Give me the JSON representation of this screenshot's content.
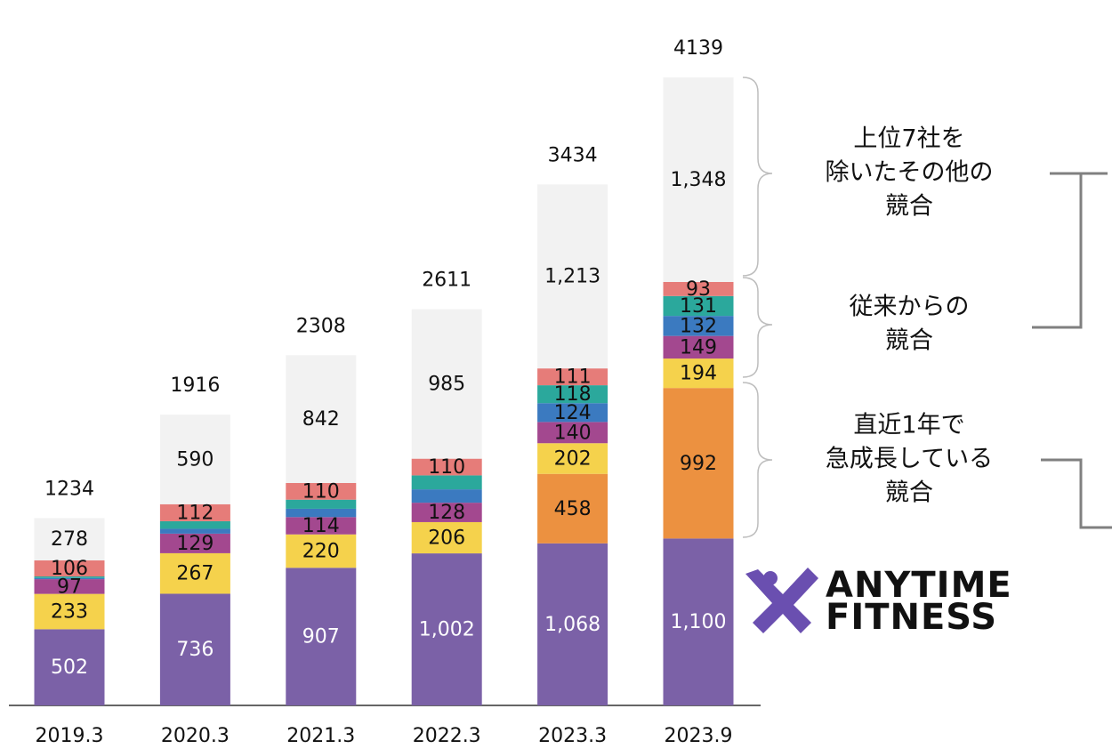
{
  "chart_data": {
    "type": "stacked_bar",
    "categories": [
      "2019.3",
      "2020.3",
      "2021.3",
      "2022.3",
      "2023.3",
      "2023.9"
    ],
    "totals": [
      1234,
      1916,
      2308,
      2611,
      3434,
      4139
    ],
    "series": [
      {
        "color": "#7b61a7",
        "label_color": "#ffffff",
        "values": [
          502,
          736,
          907,
          1002,
          1068,
          1100
        ],
        "value_labels": [
          "502",
          "736",
          "907",
          "1,002",
          "1,068",
          "1,100"
        ]
      },
      {
        "color": "#ec9140",
        "label_color": "#111111",
        "values": [
          0,
          0,
          0,
          0,
          458,
          992
        ],
        "value_labels": [
          null,
          null,
          null,
          null,
          "458",
          "992"
        ]
      },
      {
        "color": "#f5d24c",
        "label_color": "#111111",
        "values": [
          233,
          267,
          220,
          206,
          202,
          194
        ],
        "value_labels": [
          "233",
          "267",
          "220",
          "206",
          "202",
          "194"
        ]
      },
      {
        "color": "#a3488f",
        "label_color": "#111111",
        "values": [
          97,
          129,
          114,
          128,
          140,
          149
        ],
        "value_labels": [
          "97",
          "129",
          "114",
          "128",
          "140",
          "149"
        ]
      },
      {
        "color": "#3b7ac0",
        "label_color": "#111111",
        "values": [
          8,
          32,
          55,
          88,
          124,
          132
        ],
        "value_labels": [
          null,
          null,
          null,
          null,
          "124",
          "132"
        ]
      },
      {
        "color": "#2ba89c",
        "label_color": "#111111",
        "values": [
          10,
          50,
          60,
          92,
          118,
          131
        ],
        "value_labels": [
          null,
          null,
          null,
          null,
          "118",
          "131"
        ]
      },
      {
        "color": "#e67c79",
        "label_color": "#111111",
        "values": [
          106,
          112,
          110,
          110,
          111,
          93
        ],
        "value_labels": [
          "106",
          "112",
          "110",
          "110",
          "111",
          "93"
        ]
      },
      {
        "color": "#f2f2f2",
        "label_color": "#111111",
        "values": [
          278,
          590,
          842,
          985,
          1213,
          1348
        ],
        "value_labels": [
          "278",
          "590",
          "842",
          "985",
          "1,213",
          "1,348"
        ]
      }
    ],
    "annotations": [
      [
        "上位7社を",
        "除いたその他の",
        "競合"
      ],
      [
        "従来からの",
        "競合"
      ],
      [
        "直近1年で",
        "急成長している",
        "競合"
      ]
    ],
    "logo": [
      "ANYTIME",
      "FITNESS"
    ]
  }
}
